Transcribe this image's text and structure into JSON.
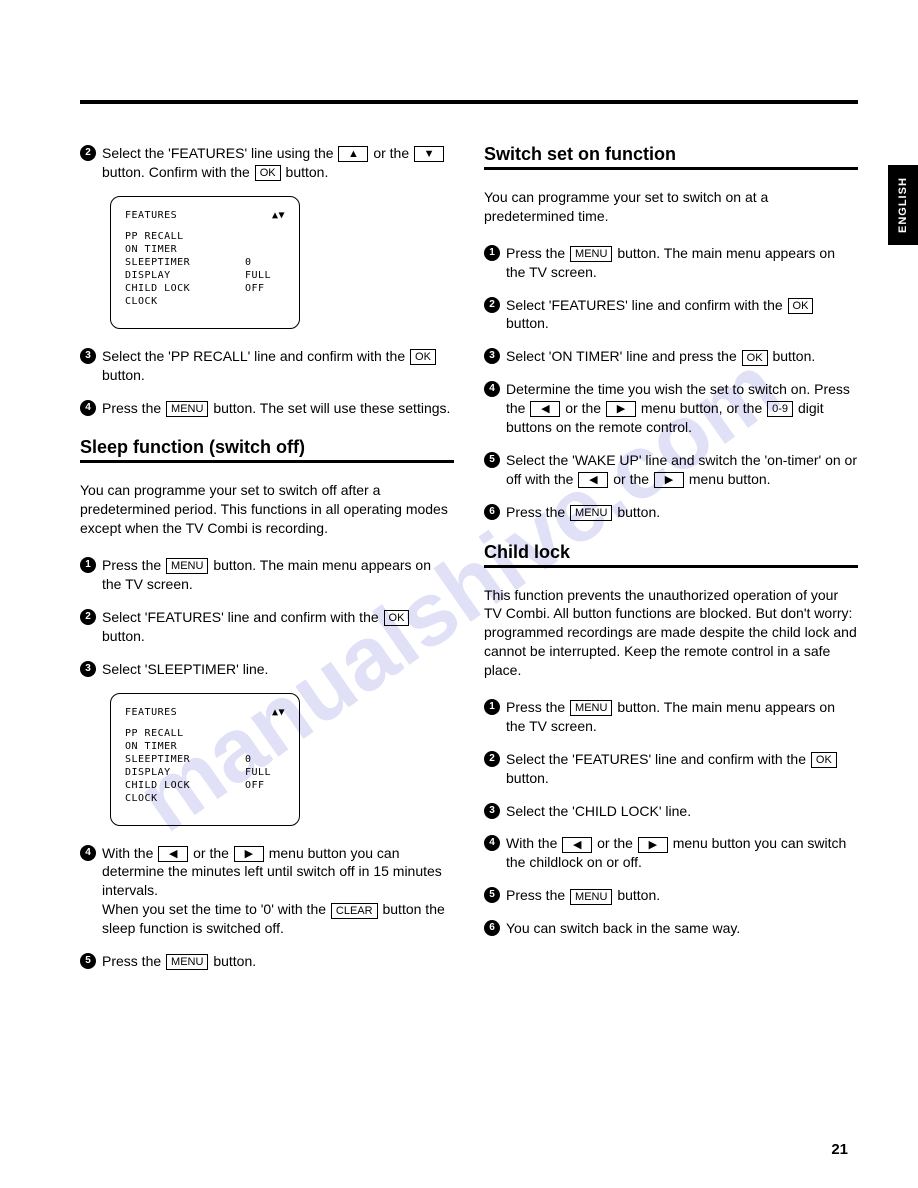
{
  "pageNumber": "21",
  "languageTab": "ENGLISH",
  "watermark": "manualshive.com",
  "buttons": {
    "up": "▲",
    "down": "▼",
    "left": "◀",
    "right": "▶",
    "ok": "OK",
    "menu": "MENU",
    "digits": "0-9",
    "clear": "CLEAR"
  },
  "featuresScreen": {
    "title": "FEATURES",
    "indicator": "▲▼",
    "rows": [
      {
        "label": "PP RECALL",
        "value": ""
      },
      {
        "label": "ON TIMER",
        "value": ""
      },
      {
        "label": "SLEEPTIMER",
        "value": "0"
      },
      {
        "label": "DISPLAY",
        "value": "FULL"
      },
      {
        "label": "CHILD LOCK",
        "value": "OFF"
      },
      {
        "label": "CLOCK",
        "value": ""
      }
    ]
  },
  "left": {
    "step2a": "Select the 'FEATURES' line using the",
    "step2b": "or the",
    "step2c": "button. Confirm with the",
    "step2d": "button.",
    "step3a": "Select the 'PP RECALL' line and confirm with the",
    "step3b": "button.",
    "step4a": "Press the",
    "step4b": "button. The set will use these settings.",
    "sleepHeading": "Sleep function (switch off)",
    "sleepIntro": "You can programme your set to switch off after a predetermined period. This functions in all operating modes except when the TV Combi is recording.",
    "s1a": "Press the",
    "s1b": "button. The main menu appears on the TV screen.",
    "s2a": "Select 'FEATURES' line and confirm with the",
    "s2b": "button.",
    "s3": "Select 'SLEEPTIMER' line.",
    "s4a": "With the",
    "s4b": "or the",
    "s4c": "menu button you can determine the minutes left until switch off in 15 minutes intervals.",
    "s4d": "When you set the time to '0' with the",
    "s4e": "button the sleep function is switched off.",
    "s5a": "Press the",
    "s5b": "button."
  },
  "right": {
    "switchHeading": "Switch set on function",
    "switchIntro": "You can programme your set to switch on at a predetermined time.",
    "w1a": "Press the",
    "w1b": "button. The main menu appears on the TV screen.",
    "w2a": "Select 'FEATURES' line and confirm with the",
    "w2b": "button.",
    "w3a": "Select 'ON TIMER' line and press the",
    "w3b": "button.",
    "w4a": "Determine the time you wish the set to switch on. Press the",
    "w4b": "or the",
    "w4c": "menu button, or the",
    "w4d": "digit buttons on the remote control.",
    "w5a": "Select the 'WAKE UP' line and switch the 'on-timer' on or off with the",
    "w5b": "or the",
    "w5c": "menu button.",
    "w6a": "Press the",
    "w6b": "button.",
    "childHeading": "Child lock",
    "childIntro": "This function prevents the unauthorized operation of your TV Combi. All button functions are blocked. But don't worry: programmed recordings are made despite the child lock and cannot be interrupted. Keep the remote control in a safe place.",
    "c1a": "Press the",
    "c1b": "button. The main menu appears on the TV screen.",
    "c2a": "Select the 'FEATURES' line and confirm with the",
    "c2b": "button.",
    "c3": "Select the 'CHILD LOCK' line.",
    "c4a": "With the",
    "c4b": "or the",
    "c4c": "menu button you can switch the childlock on or off.",
    "c5a": "Press the",
    "c5b": "button.",
    "c6": "You can switch back in the same way."
  }
}
